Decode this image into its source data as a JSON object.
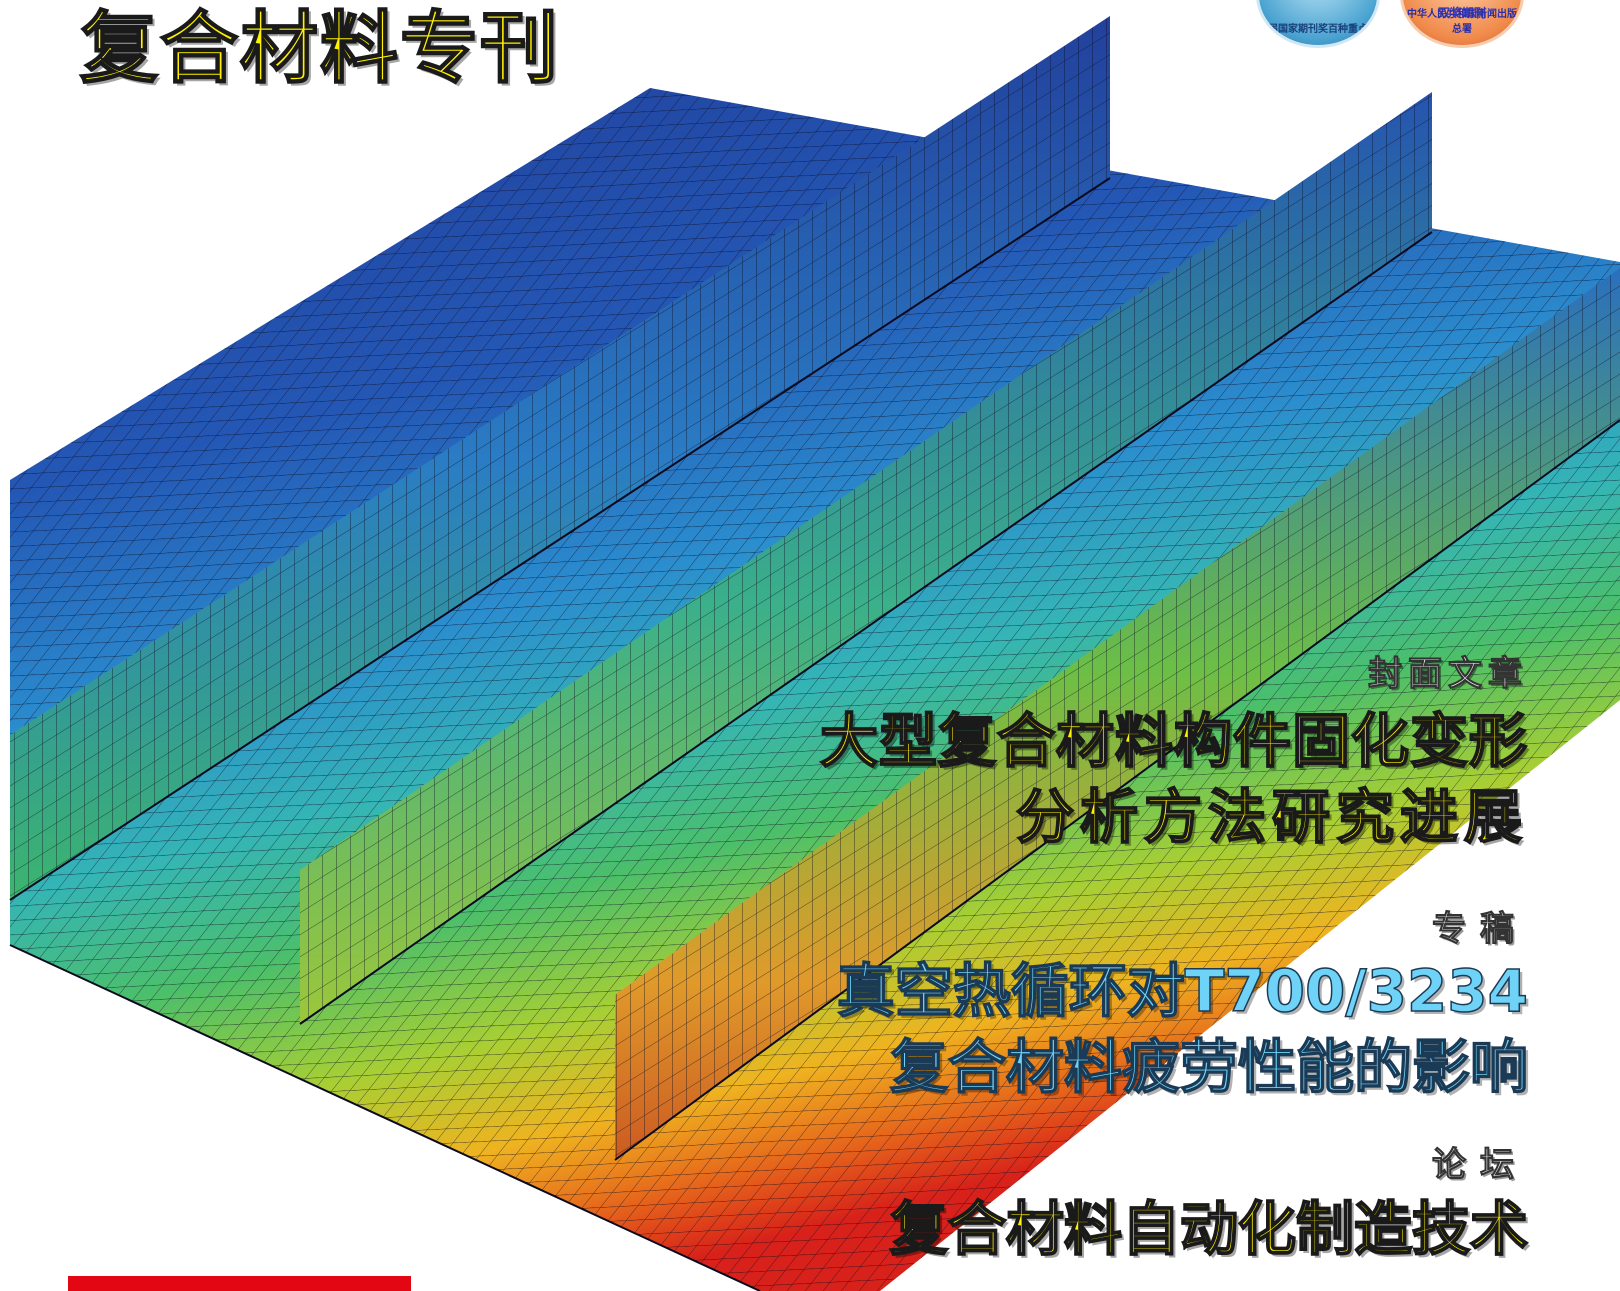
{
  "header": {
    "special_issue_title": "复合材料专刊"
  },
  "badges": [
    {
      "icon": "award-seal-icon",
      "text": "届国家期刊奖百种重点"
    },
    {
      "icon": "award-seal-icon",
      "title": "双奖期刊",
      "text": "中华人民共和国新闻出版总署"
    }
  ],
  "articles": {
    "cover": {
      "label": "封面文章",
      "line1": "大型复合材料构件固化变形",
      "line2": "分析方法研究进展"
    },
    "feature": {
      "label": "专稿",
      "line1": "真空热循环对T700/3234",
      "line2": "复合材料疲劳性能的影响"
    },
    "forum": {
      "label": "论坛",
      "line1": "复合材料自动化制造技术"
    }
  },
  "colors": {
    "title_yellow": "#fff200",
    "feature_cyan": "#6fd3f7",
    "accent_red": "#e30613",
    "fea_contour": [
      "#1d3f9a",
      "#2a64c0",
      "#2e9fd0",
      "#3bbf9a",
      "#5cc04a",
      "#b5d12e",
      "#f0b01e",
      "#e8641a",
      "#d9201a"
    ]
  }
}
